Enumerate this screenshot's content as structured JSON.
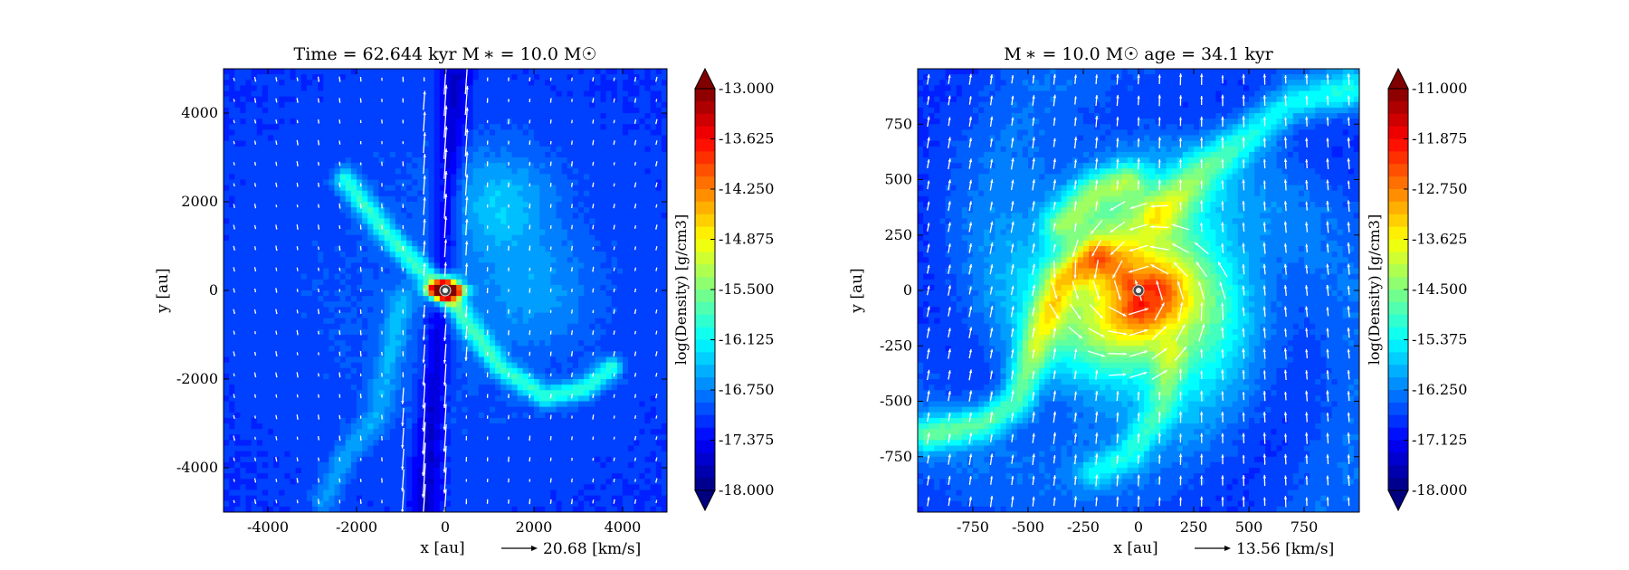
{
  "chart_data": [
    {
      "type": "heatmap",
      "title": "Time = 62.644 kyr    M ∗ = 10.0 M☉",
      "xlabel": "x [au]",
      "ylabel": "y [au]",
      "xlim": [
        -5000,
        5000
      ],
      "ylim": [
        -5000,
        5000
      ],
      "xticks": [
        -4000,
        -2000,
        0,
        2000,
        4000
      ],
      "xtick_labels": [
        "-4000",
        "-2000",
        "0",
        "2000",
        "4000"
      ],
      "yticks": [
        4000,
        2000,
        0,
        -2000,
        -4000
      ],
      "ytick_labels": [
        "4000",
        "2000",
        "0",
        "-2000",
        "-4000"
      ],
      "colorbar": {
        "label": "log(Density) [g/cm3]",
        "min": -18.0,
        "max": -13.0,
        "ticks": [
          -13.0,
          -13.625,
          -14.25,
          -14.875,
          -15.5,
          -16.125,
          -16.75,
          -17.375,
          -18.0
        ],
        "tick_labels": [
          "-13.000",
          "-13.625",
          "-14.250",
          "-14.875",
          "-15.500",
          "-16.125",
          "-16.750",
          "-17.375",
          "-18.000"
        ],
        "colormap": "jet"
      },
      "velocity_key": "20.68 [km/s]",
      "morphology": "filamentary",
      "outflow": "bipolar cavity along y-axis"
    },
    {
      "type": "heatmap",
      "title": "M ∗ = 10.0 M☉          age = 34.1 kyr",
      "xlabel": "x [au]",
      "ylabel": "y [au]",
      "xlim": [
        -1000,
        1000
      ],
      "ylim": [
        -1000,
        1000
      ],
      "xticks": [
        -750,
        -500,
        -250,
        0,
        250,
        500,
        750
      ],
      "xtick_labels": [
        "-750",
        "-500",
        "-250",
        "0",
        "250",
        "500",
        "750"
      ],
      "yticks": [
        750,
        500,
        250,
        0,
        -250,
        -500,
        -750
      ],
      "ytick_labels": [
        "750",
        "500",
        "250",
        "0",
        "-250",
        "-500",
        "-750"
      ],
      "colorbar": {
        "label": "log(Density) [g/cm3]",
        "min": -18.0,
        "max": -11.0,
        "ticks": [
          -11.0,
          -11.875,
          -12.75,
          -13.625,
          -14.5,
          -15.375,
          -16.25,
          -17.125,
          -18.0
        ],
        "tick_labels": [
          "-11.000",
          "-11.875",
          "-12.750",
          "-13.625",
          "-14.500",
          "-15.375",
          "-16.250",
          "-17.125",
          "-18.000"
        ],
        "colormap": "jet"
      },
      "velocity_key": "13.56 [km/s]",
      "morphology": "spiral-disk"
    }
  ]
}
